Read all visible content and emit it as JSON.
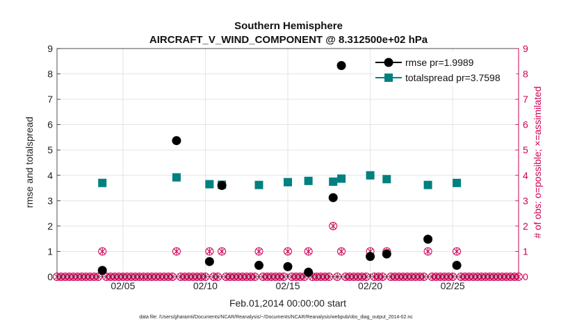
{
  "chart_data": {
    "type": "scatter",
    "title": "Southern Hemisphere",
    "subtitle": "AIRCRAFT_V_WIND_COMPONENT @ 8.312500e+02 hPa",
    "xlabel": "Feb.01,2014 00:00:00 start",
    "ylabel": "rmse and totalspread",
    "y2label": "# of obs: o=possible; ×=assimilated",
    "footnote": "data file: /Users/gharamti/Documents/NCAR/Reanalysis/~/Documents/NCAR/Reanalysis/webpub/obs_diag_output_2014-02.nc",
    "xlim": [
      1.0,
      29.0
    ],
    "ylim": [
      0,
      9
    ],
    "y2lim": [
      0,
      9
    ],
    "grid": true,
    "xticks": [
      5,
      10,
      15,
      20,
      25
    ],
    "xtick_labels": [
      "02/05",
      "02/10",
      "02/15",
      "02/20",
      "02/25"
    ],
    "yticks": [
      0,
      1,
      2,
      3,
      4,
      5,
      6,
      7,
      8,
      9
    ],
    "ytick_labels": [
      "0",
      "1",
      "2",
      "3",
      "4",
      "5",
      "6",
      "7",
      "8",
      "9"
    ],
    "y2tick_labels": [
      "0",
      "1",
      "2",
      "3",
      "4",
      "5",
      "6",
      "7",
      "8",
      "9"
    ],
    "legend": {
      "position": "top-right",
      "entries": [
        "rmse pr=1.9989",
        "totalspread pr=3.7598"
      ]
    },
    "series": [
      {
        "name": "rmse pr=1.9989",
        "color": "#000000",
        "marker": "circle",
        "x": [
          3.75,
          8.25,
          10.25,
          11.0,
          13.25,
          15.0,
          16.25,
          17.75,
          18.25,
          20.0,
          21.0,
          23.5,
          25.25
        ],
        "values": [
          0.25,
          5.37,
          0.6,
          3.6,
          0.45,
          0.4,
          0.18,
          3.12,
          8.33,
          0.8,
          0.9,
          1.48,
          0.45
        ]
      },
      {
        "name": "totalspread pr=3.7598",
        "color": "#008080",
        "marker": "square",
        "x": [
          3.75,
          8.25,
          10.25,
          11.0,
          13.25,
          15.0,
          16.25,
          17.75,
          18.25,
          20.0,
          21.0,
          23.5,
          25.25
        ],
        "values": [
          3.7,
          3.92,
          3.65,
          3.63,
          3.62,
          3.73,
          3.78,
          3.75,
          3.87,
          4.0,
          3.85,
          3.62,
          3.7
        ]
      },
      {
        "name": "obs possible",
        "color": "#cc0055",
        "marker": "circle-open",
        "axis": "right",
        "x_start": 1.0,
        "x_step": 0.25,
        "x_end": 29.0,
        "nonzero_x": [
          3.75,
          8.25,
          10.25,
          11.0,
          13.25,
          15.0,
          16.25,
          17.75,
          18.25,
          20.0,
          21.0,
          23.5,
          25.25
        ],
        "nonzero_values": [
          1,
          1,
          1,
          1,
          1,
          1,
          1,
          2,
          1,
          1,
          1,
          1,
          1
        ]
      },
      {
        "name": "obs assimilated",
        "color": "#cc0055",
        "marker": "cross",
        "axis": "right",
        "x_start": 1.0,
        "x_step": 0.25,
        "x_end": 29.0,
        "nonzero_x": [
          3.75,
          8.25,
          10.25,
          11.0,
          13.25,
          15.0,
          16.25,
          17.75,
          18.25,
          20.0,
          21.0,
          23.5,
          25.25
        ],
        "nonzero_values": [
          1,
          1,
          1,
          1,
          1,
          1,
          1,
          2,
          1,
          1,
          1,
          1,
          1
        ]
      }
    ]
  },
  "colors": {
    "axis": "#222222",
    "right_axis": "#cc0055",
    "grid": "#e3e3e3",
    "rmse": "#000000",
    "spread": "#008080",
    "obs": "#cc0055"
  }
}
